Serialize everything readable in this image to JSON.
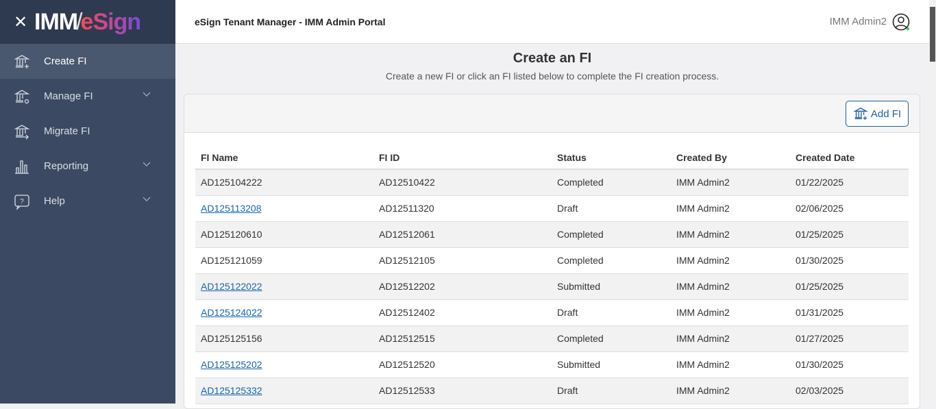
{
  "brand": {
    "imm": "IMM",
    "slash": "/",
    "esign": "eSign"
  },
  "sidebar": {
    "items": [
      {
        "label": "Create FI",
        "icon": "bank-plus-icon",
        "active": true
      },
      {
        "label": "Manage FI",
        "icon": "bank-gear-icon",
        "expandable": true
      },
      {
        "label": "Migrate FI",
        "icon": "bank-arrow-icon"
      },
      {
        "label": "Reporting",
        "icon": "bar-chart-icon",
        "expandable": true
      },
      {
        "label": "Help",
        "icon": "help-bubble-icon",
        "expandable": true
      }
    ]
  },
  "header": {
    "title": "eSign Tenant Manager - IMM Admin Portal",
    "user": "IMM Admin2",
    "status_color": "#2ecc71"
  },
  "main": {
    "title": "Create an FI",
    "subtitle": "Create a new FI or click an FI listed below to complete the FI creation process.",
    "add_label": "Add FI"
  },
  "table": {
    "columns": [
      "FI Name",
      "FI ID",
      "Status",
      "Created By",
      "Created Date"
    ],
    "rows": [
      [
        "AD125104222",
        "AD12510422",
        "Completed",
        "IMM Admin2",
        "01/22/2025"
      ],
      [
        "AD125113208",
        "AD12511320",
        "Draft",
        "IMM Admin2",
        "02/06/2025"
      ],
      [
        "AD125120610",
        "AD12512061",
        "Completed",
        "IMM Admin2",
        "01/25/2025"
      ],
      [
        "AD125121059",
        "AD12512105",
        "Completed",
        "IMM Admin2",
        "01/30/2025"
      ],
      [
        "AD125122022",
        "AD12512202",
        "Submitted",
        "IMM Admin2",
        "01/25/2025"
      ],
      [
        "AD125124022",
        "AD12512402",
        "Draft",
        "IMM Admin2",
        "01/31/2025"
      ],
      [
        "AD125125156",
        "AD12512515",
        "Completed",
        "IMM Admin2",
        "01/27/2025"
      ],
      [
        "AD125125202",
        "AD12512520",
        "Submitted",
        "IMM Admin2",
        "01/30/2025"
      ],
      [
        "AD125125332",
        "AD12512533",
        "Draft",
        "IMM Admin2",
        "02/03/2025"
      ]
    ]
  }
}
